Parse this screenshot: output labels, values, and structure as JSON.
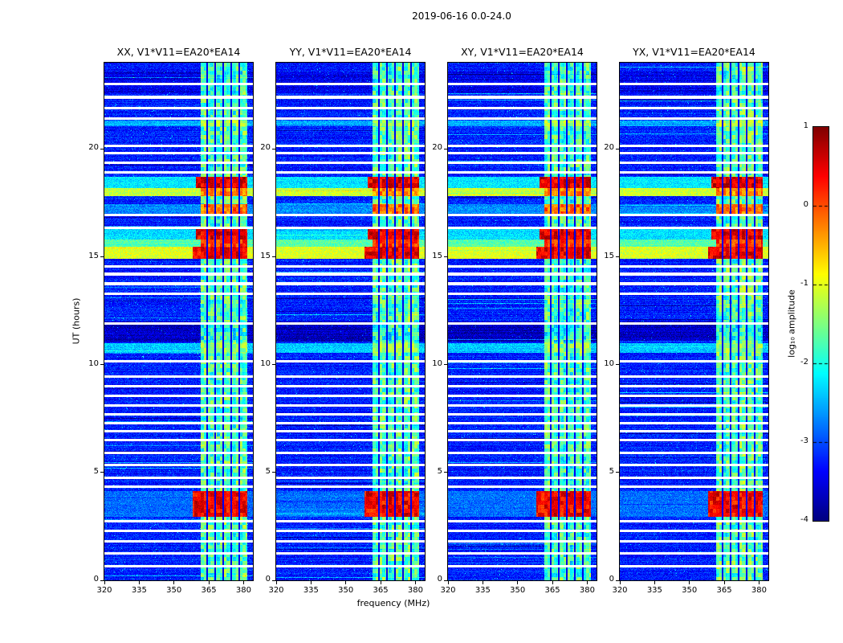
{
  "chart_data": {
    "type": "heatmap",
    "title": "2019-06-16 0.0-24.0",
    "xlabel": "frequency (MHz)",
    "ylabel": "UT (hours)",
    "colormap": "jet",
    "value_range": [
      -4,
      1
    ],
    "x_range": [
      320,
      384
    ],
    "y_range": [
      0,
      24
    ],
    "x_ticks": [
      320,
      335,
      350,
      365,
      380
    ],
    "y_ticks": [
      0,
      5,
      10,
      15,
      20
    ],
    "colorbar": {
      "label": "log₁₀ amplitude",
      "ticks": [
        1,
        0,
        -1,
        -2,
        -3,
        -4
      ]
    },
    "panels": [
      {
        "title": "XX, V1*V11=EA20*EA14",
        "seed": 101
      },
      {
        "title": "YY, V1*V11=EA20*EA14",
        "seed": 202
      },
      {
        "title": "XY, V1*V11=EA20*EA14",
        "seed": 303
      },
      {
        "title": "YX, V1*V11=EA20*EA14",
        "seed": 404
      }
    ],
    "background_level": -3.25,
    "rfi_band": {
      "f_start": 361.5,
      "f_end": 381.5,
      "base_level": -1.75,
      "gap_freqs": [
        364.2,
        367.8,
        371.2,
        374.8,
        378.2
      ],
      "gap_halfwidth": 0.35
    },
    "events": [
      {
        "t0": 2.95,
        "t1": 4.15,
        "band_level": 0.4,
        "outside_level": -2.85,
        "f_extend": 3.5
      },
      {
        "t0": 10.55,
        "t1": 11.0,
        "band_level": -1.4,
        "outside_level": -2.4
      },
      {
        "t0": 14.9,
        "t1": 15.45,
        "band_level": 0.45,
        "outside_level": -1.05,
        "f_extend": 3.5
      },
      {
        "t0": 15.45,
        "t1": 15.8,
        "band_level": 0.1,
        "outside_level": -1.7
      },
      {
        "t0": 15.8,
        "t1": 16.3,
        "band_level": 0.5,
        "outside_level": -2.3,
        "f_extend": 2
      },
      {
        "t0": 16.9,
        "t1": 17.45,
        "band_level": -0.15,
        "outside_level": -2.7
      },
      {
        "t0": 17.8,
        "t1": 18.2,
        "band_level": -0.3,
        "outside_level": -1.15
      },
      {
        "t0": 18.2,
        "t1": 18.7,
        "band_level": 0.55,
        "outside_level": -2.25,
        "f_extend": 2
      },
      {
        "t0": 21.05,
        "t1": 21.3,
        "band_level": -1.3,
        "outside_level": -2.55
      }
    ],
    "dark_bands": [
      {
        "t0": 11.05,
        "t1": 12.0,
        "offset": -0.45
      },
      {
        "t0": 22.6,
        "t1": 23.6,
        "offset": -0.25
      }
    ],
    "dropout_times": [
      0.65,
      1.25,
      1.8,
      2.3,
      2.75,
      4.35,
      4.75,
      5.35,
      5.9,
      6.5,
      6.9,
      7.3,
      7.7,
      8.1,
      8.55,
      9.0,
      9.45,
      10.15,
      11.9,
      13.3,
      13.75,
      14.2,
      14.55,
      16.35,
      16.95,
      18.9,
      19.35,
      19.8,
      20.15,
      21.4,
      21.9,
      22.4,
      23.0
    ],
    "dropout_halfwidth": 0.06
  }
}
